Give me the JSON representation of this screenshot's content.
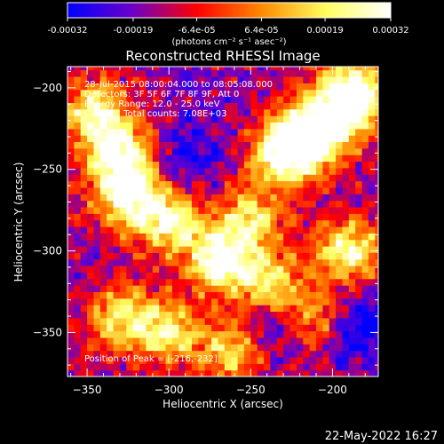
{
  "title": "Reconstructed RHESSI Image",
  "colorbar": {
    "tick_labels": [
      "-0.00032",
      "-0.00019",
      "-6.4e-05",
      "6.4e-05",
      "0.00019",
      "0.00032"
    ],
    "tick_values": [
      -0.00032,
      -0.00019,
      -6.4e-05,
      6.4e-05,
      0.00019,
      0.00032
    ],
    "unit_label": "(photons cm⁻² s⁻¹ asec⁻²)",
    "range": [
      -0.00032,
      0.00032
    ],
    "colormap": [
      "#0000ff",
      "#6a00c8",
      "#ff0000",
      "#ff8a00",
      "#ffff60",
      "#ffffff"
    ]
  },
  "info": {
    "line1": "28-Jul-2015 08:00:04.000 to 08:05:08.000",
    "line2": "Detectors: 3F 5F 6F 7F 8F 9F, Att 0",
    "line3": "Energy Range: 12.0 - 25.0 keV",
    "line4": "Clean     Total counts: 7.08E+03",
    "peak": "Position of Peak = [-216,-232]"
  },
  "timestamp": "22-May-2022 16:27",
  "chart_data": {
    "type": "heatmap",
    "title": "Reconstructed RHESSI Image",
    "xlabel": "Heliocentric X (arcsec)",
    "ylabel": "Heliocentric Y (arcsec)",
    "xlim": [
      -362,
      -172
    ],
    "ylim": [
      -377,
      -187
    ],
    "xticks": [
      -350,
      -300,
      -250,
      -200
    ],
    "yticks": [
      -350,
      -300,
      -250,
      -200
    ],
    "xtick_labels": [
      "−350",
      "−300",
      "−250",
      "−200"
    ],
    "ytick_labels": [
      "−350",
      "−300",
      "−250",
      "−200"
    ],
    "peak_position": [
      -216,
      -232
    ],
    "hot_regions": [
      {
        "x": -345,
        "y": -215,
        "level": 0.8
      },
      {
        "x": -330,
        "y": -240,
        "level": 0.9
      },
      {
        "x": -325,
        "y": -265,
        "level": 0.9
      },
      {
        "x": -300,
        "y": -280,
        "level": 0.85
      },
      {
        "x": -270,
        "y": -305,
        "level": 0.95
      },
      {
        "x": -240,
        "y": -320,
        "level": 0.8
      },
      {
        "x": -230,
        "y": -240,
        "level": 0.9
      },
      {
        "x": -215,
        "y": -230,
        "level": 1.0
      },
      {
        "x": -195,
        "y": -215,
        "level": 0.85
      },
      {
        "x": -185,
        "y": -200,
        "level": 0.8
      },
      {
        "x": -190,
        "y": -300,
        "level": 0.85
      },
      {
        "x": -250,
        "y": -280,
        "level": 0.7
      },
      {
        "x": -330,
        "y": -340,
        "level": 0.75
      },
      {
        "x": -300,
        "y": -350,
        "level": 0.7
      },
      {
        "x": -260,
        "y": -360,
        "level": 0.7
      },
      {
        "x": -210,
        "y": -340,
        "level": 0.6
      }
    ],
    "cold_regions": [
      {
        "x": -290,
        "y": -245,
        "level": 0.15
      },
      {
        "x": -240,
        "y": -345,
        "level": 0.1
      },
      {
        "x": -185,
        "y": -345,
        "level": 0.05
      },
      {
        "x": -345,
        "y": -320,
        "level": 0.3
      },
      {
        "x": -275,
        "y": -205,
        "level": 0.3
      }
    ]
  }
}
